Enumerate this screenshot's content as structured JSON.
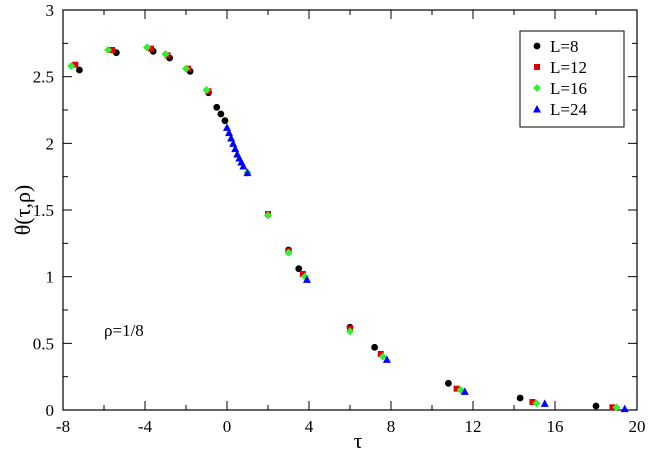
{
  "chart_data": {
    "type": "scatter",
    "xlabel": "τ",
    "ylabel": "θ(τ,ρ)",
    "xlim": [
      -8,
      20
    ],
    "ylim": [
      0,
      3
    ],
    "x_ticks": [
      "-8",
      "-4",
      "0",
      "4",
      "8",
      "12",
      "16",
      "20"
    ],
    "y_ticks": [
      "0",
      "0.5",
      "1",
      "1.5",
      "2",
      "2.5",
      "3"
    ],
    "annotation": "ρ=1/8",
    "legend_position": "top-right",
    "grid": false,
    "series": [
      {
        "name": "L=8",
        "marker": "circle",
        "color": "#000000",
        "points": [
          [
            -7.2,
            2.55
          ],
          [
            -5.4,
            2.68
          ],
          [
            -3.6,
            2.69
          ],
          [
            -2.8,
            2.64
          ],
          [
            -1.8,
            2.54
          ],
          [
            -0.9,
            2.38
          ],
          [
            -0.5,
            2.27
          ],
          [
            -0.3,
            2.22
          ],
          [
            -0.1,
            2.17
          ],
          [
            3.0,
            1.2
          ],
          [
            3.5,
            1.06
          ],
          [
            6.0,
            0.62
          ],
          [
            7.2,
            0.47
          ],
          [
            10.8,
            0.2
          ],
          [
            14.3,
            0.09
          ],
          [
            18.0,
            0.03
          ]
        ]
      },
      {
        "name": "L=12",
        "marker": "square",
        "color": "#e00000",
        "points": [
          [
            -7.4,
            2.59
          ],
          [
            -5.6,
            2.7
          ],
          [
            -3.7,
            2.71
          ],
          [
            -2.9,
            2.66
          ],
          [
            -1.9,
            2.56
          ],
          [
            -0.9,
            2.39
          ],
          [
            2.0,
            1.47
          ],
          [
            3.0,
            1.19
          ],
          [
            3.7,
            1.02
          ],
          [
            6.0,
            0.61
          ],
          [
            7.5,
            0.42
          ],
          [
            11.2,
            0.16
          ],
          [
            14.9,
            0.06
          ],
          [
            18.8,
            0.02
          ]
        ]
      },
      {
        "name": "L=16",
        "marker": "diamond",
        "color": "#33ee33",
        "points": [
          [
            -7.6,
            2.58
          ],
          [
            -5.8,
            2.7
          ],
          [
            -3.9,
            2.72
          ],
          [
            -3.0,
            2.67
          ],
          [
            -2.0,
            2.56
          ],
          [
            -1.0,
            2.4
          ],
          [
            1.0,
            1.78
          ],
          [
            2.0,
            1.46
          ],
          [
            3.0,
            1.18
          ],
          [
            3.8,
            1.0
          ],
          [
            6.0,
            0.59
          ],
          [
            7.6,
            0.4
          ],
          [
            11.4,
            0.15
          ],
          [
            15.1,
            0.05
          ],
          [
            19.0,
            0.02
          ]
        ]
      },
      {
        "name": "L=24",
        "marker": "triangle",
        "color": "#0000ff",
        "points": [
          [
            0.0,
            2.12
          ],
          [
            0.1,
            2.08
          ],
          [
            0.2,
            2.04
          ],
          [
            0.3,
            2.0
          ],
          [
            0.4,
            1.96
          ],
          [
            0.5,
            1.92
          ],
          [
            0.6,
            1.89
          ],
          [
            0.7,
            1.86
          ],
          [
            0.8,
            1.83
          ],
          [
            1.0,
            1.78
          ],
          [
            3.9,
            0.98
          ],
          [
            7.8,
            0.38
          ],
          [
            11.6,
            0.14
          ],
          [
            15.5,
            0.05
          ],
          [
            19.4,
            0.01
          ]
        ]
      }
    ]
  }
}
